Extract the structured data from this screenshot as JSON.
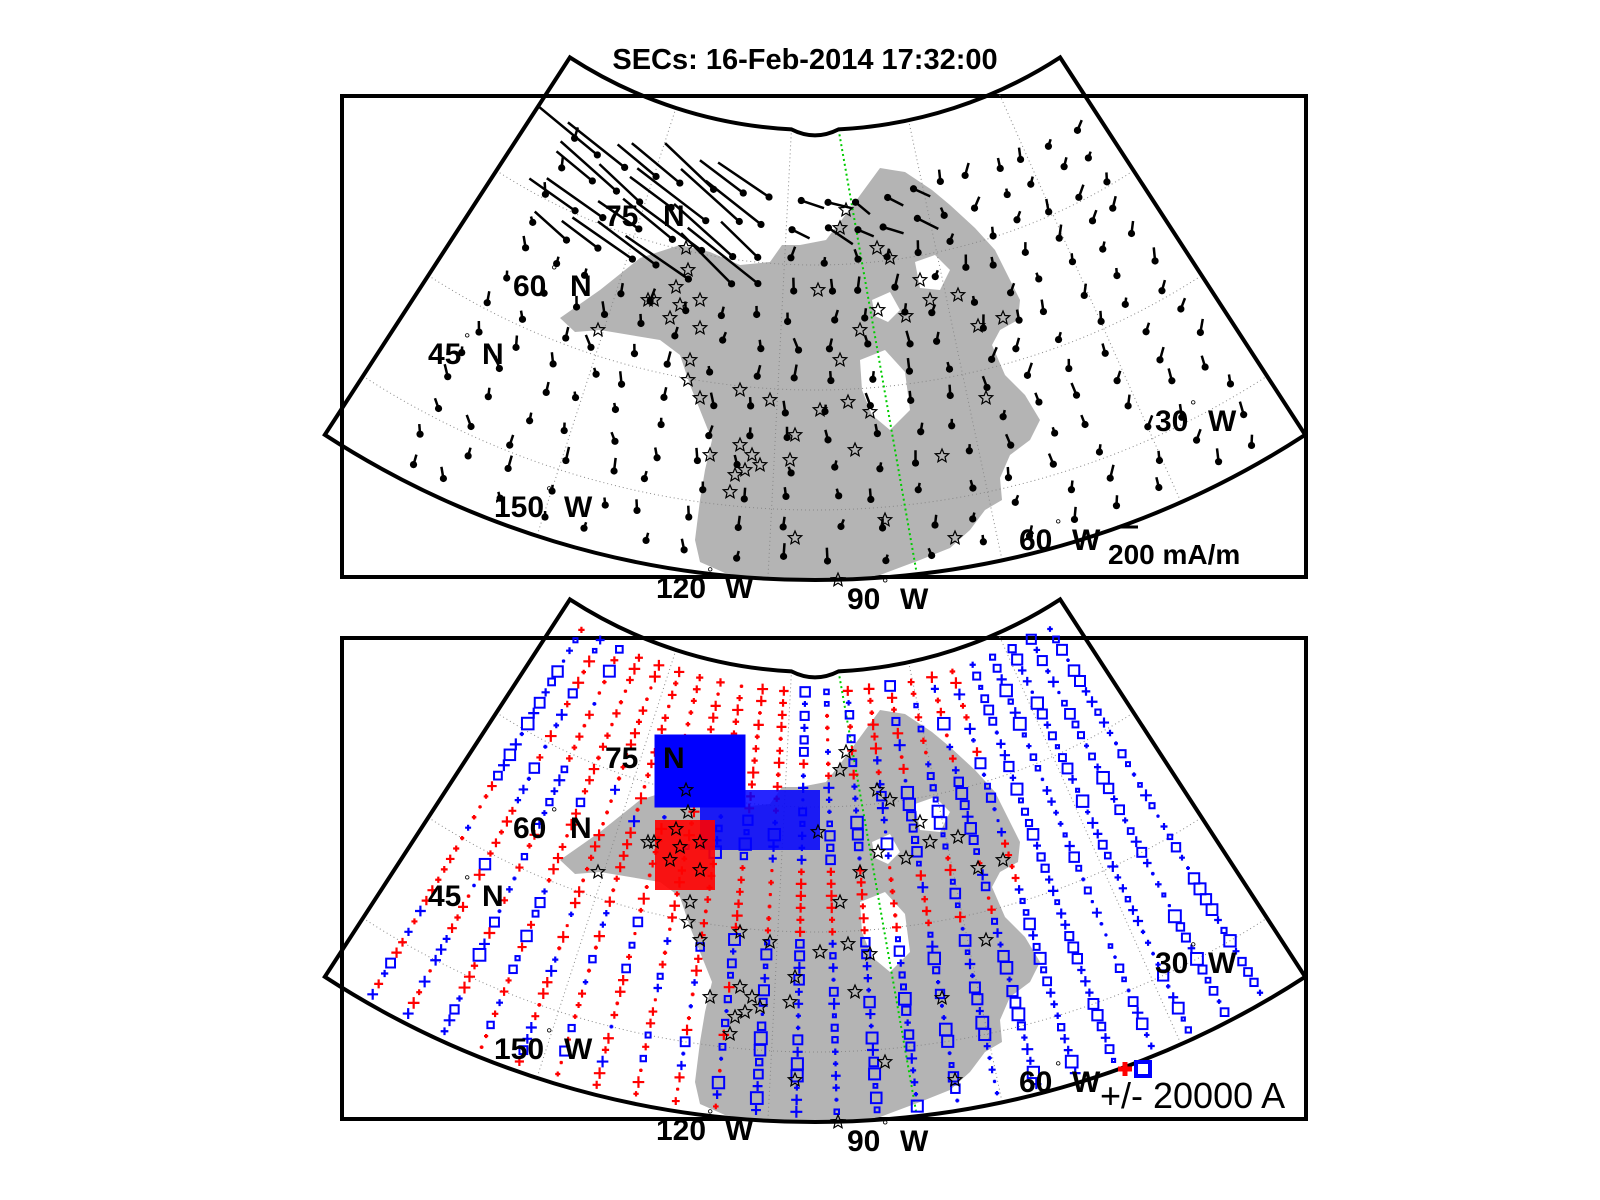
{
  "title": "SECs: 16-Feb-2014 17:32:00",
  "colors": {
    "land": "#b4b4b4",
    "positive": "#ff0000",
    "negative": "#0000ff",
    "meridian_highlight": "#00cc00",
    "frame": "#000000",
    "grid": "#888888"
  },
  "labels": {
    "lat75": "75",
    "lat60": "60",
    "lat45": "45",
    "north": "N",
    "lon30": "30",
    "lon60": "60",
    "lon90": "90",
    "lon120": "120",
    "lon150": "150",
    "west": "W",
    "deg": "°"
  },
  "top_panel": {
    "scale_label": "200 mA/m",
    "marker": "star-icon"
  },
  "bottom_panel": {
    "scale_label": "+/- 20000 A"
  }
}
